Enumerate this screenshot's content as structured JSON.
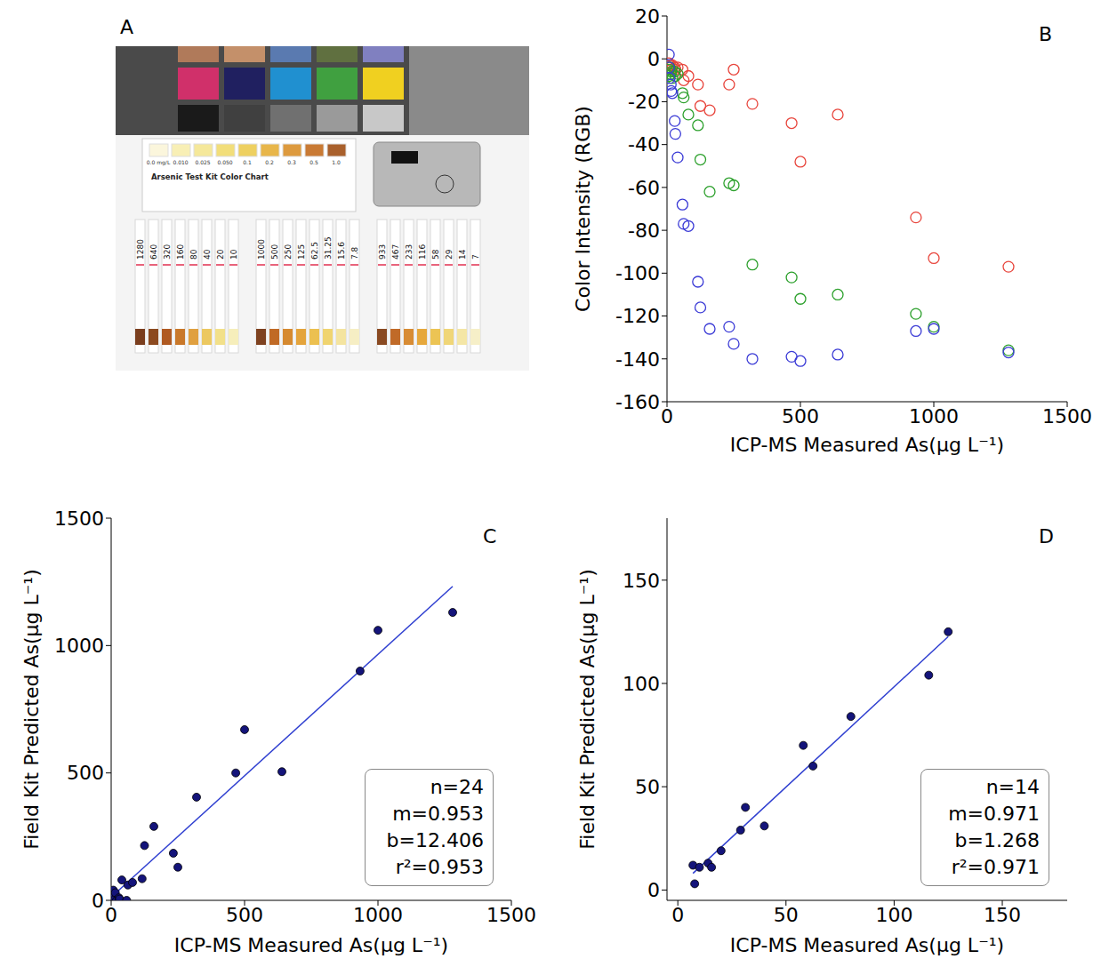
{
  "panel_a": {
    "panel": "A",
    "type": "photo",
    "color_chart": {
      "title": "Arsenic Test Kit Color Chart",
      "labels": [
        "0.0 mg/L",
        "0.010",
        "0.025",
        "0.050",
        "0.1",
        "0.2",
        "0.3",
        "0.5",
        "1.0"
      ],
      "colors": [
        "#fbf6dc",
        "#f8efb5",
        "#f5e89a",
        "#f2de7a",
        "#eed060",
        "#e8b64a",
        "#dd9a3e",
        "#c97a34",
        "#a9602c"
      ]
    },
    "strip_groups": [
      {
        "labels": [
          1280,
          640,
          320,
          160,
          80,
          40,
          20,
          10
        ],
        "colors": [
          "#7a3e1e",
          "#8c4a20",
          "#b05a22",
          "#c9782a",
          "#e0a040",
          "#ecc860",
          "#f2e08a",
          "#f6eebb"
        ]
      },
      {
        "labels": [
          1000,
          500,
          250,
          125,
          62.5,
          31.25,
          15.6,
          7.8
        ],
        "colors": [
          "#7e4220",
          "#c06a26",
          "#d68a30",
          "#e4a43c",
          "#ecc050",
          "#f0d470",
          "#f4e4a0",
          "#f6eec4"
        ]
      },
      {
        "labels": [
          933,
          467,
          233,
          116,
          58,
          29,
          14,
          7
        ],
        "colors": [
          "#8a4a22",
          "#c06a28",
          "#d88c34",
          "#e6a83c",
          "#ecc454",
          "#f0d678",
          "#f4e6a6",
          "#f6efc8"
        ]
      }
    ]
  },
  "chart_data": [
    {
      "panel": "B",
      "type": "scatter",
      "x_label": "ICP-MS Measured As(μg L⁻¹)",
      "y_label": "Color Intensity (RGB)",
      "x": [
        7,
        7.8,
        10,
        14,
        15.6,
        20,
        29,
        31.25,
        40,
        58,
        62.5,
        80,
        116,
        125,
        160,
        233,
        250,
        320,
        467,
        500,
        640,
        933,
        1000,
        1280
      ],
      "series": [
        {
          "color": "#e8453c",
          "marker": "open_circle",
          "values": [
            -2,
            -3,
            -4,
            -3,
            -5,
            -3,
            -4,
            -5,
            -4,
            -5,
            -10,
            -8,
            -12,
            -22,
            -24,
            -12,
            -5,
            -21,
            -30,
            -48,
            -26,
            -74,
            -93,
            -97
          ]
        },
        {
          "color": "#2ca02c",
          "marker": "open_circle",
          "values": [
            -5,
            -8,
            -4,
            -7,
            -6,
            -9,
            -6,
            -8,
            -7,
            -16,
            -18,
            -26,
            -31,
            -47,
            -62,
            -58,
            -59,
            -96,
            -102,
            -112,
            -110,
            -119,
            -125,
            -136
          ]
        },
        {
          "color": "#3b3bd6",
          "marker": "open_circle",
          "values": [
            2,
            -4,
            -9,
            -12,
            -15,
            -16,
            -29,
            -35,
            -46,
            -68,
            -77,
            -78,
            -104,
            -116,
            -126,
            -125,
            -133,
            -140,
            -139,
            -141,
            -138,
            -127,
            -126,
            -137
          ]
        }
      ],
      "xlim": [
        0,
        1500
      ],
      "ylim": [
        -160,
        20
      ],
      "xticks": [
        0,
        500,
        1000,
        1500
      ],
      "yticks": [
        -160,
        -140,
        -120,
        -100,
        -80,
        -60,
        -40,
        -20,
        0,
        20
      ]
    },
    {
      "panel": "C",
      "type": "scatter",
      "x_label": "ICP-MS Measured As(μg L⁻¹)",
      "y_label": "Field Kit Predicted As(μg L⁻¹)",
      "x": [
        7,
        7.8,
        10,
        14,
        15.6,
        20,
        29,
        31.25,
        40,
        58,
        62.5,
        80,
        116,
        125,
        160,
        233,
        250,
        320,
        467,
        500,
        640,
        933,
        1000,
        1280
      ],
      "values": [
        10,
        40,
        20,
        5,
        30,
        0,
        10,
        5,
        80,
        0,
        60,
        70,
        85,
        215,
        290,
        185,
        130,
        405,
        500,
        670,
        505,
        900,
        1060,
        1130
      ],
      "color": "#14147a",
      "marker": "filled_circle",
      "fit": {
        "m": 0.953,
        "b": 12.406,
        "color": "#2f3fd0"
      },
      "annotations": [
        "n=24",
        "m=0.953",
        "b=12.406",
        "r²=0.953"
      ],
      "xlim": [
        0,
        1500
      ],
      "ylim": [
        0,
        1500
      ],
      "xticks": [
        0,
        500,
        1000,
        1500
      ],
      "yticks": [
        0,
        500,
        1000,
        1500
      ]
    },
    {
      "panel": "D",
      "type": "scatter",
      "x_label": "ICP-MS Measured As(μg L⁻¹)",
      "y_label": "Field Kit Predicted As(μg L⁻¹)",
      "x": [
        7,
        7.8,
        10,
        14,
        15.6,
        20,
        29,
        31.25,
        40,
        58,
        62.5,
        80,
        116,
        125
      ],
      "values": [
        12,
        3,
        11,
        13,
        11,
        19,
        29,
        40,
        31,
        70,
        60,
        84,
        104,
        125
      ],
      "color": "#14147a",
      "marker": "filled_circle",
      "fit": {
        "m": 0.971,
        "b": 1.268,
        "color": "#2f3fd0"
      },
      "annotations": [
        "n=14",
        "m=0.971",
        "b=1.268",
        "r²=0.971"
      ],
      "xlim": [
        -5,
        180
      ],
      "ylim": [
        -5,
        180
      ],
      "xticks": [
        0,
        50,
        100,
        150
      ],
      "yticks": [
        0,
        50,
        100,
        150
      ]
    }
  ]
}
